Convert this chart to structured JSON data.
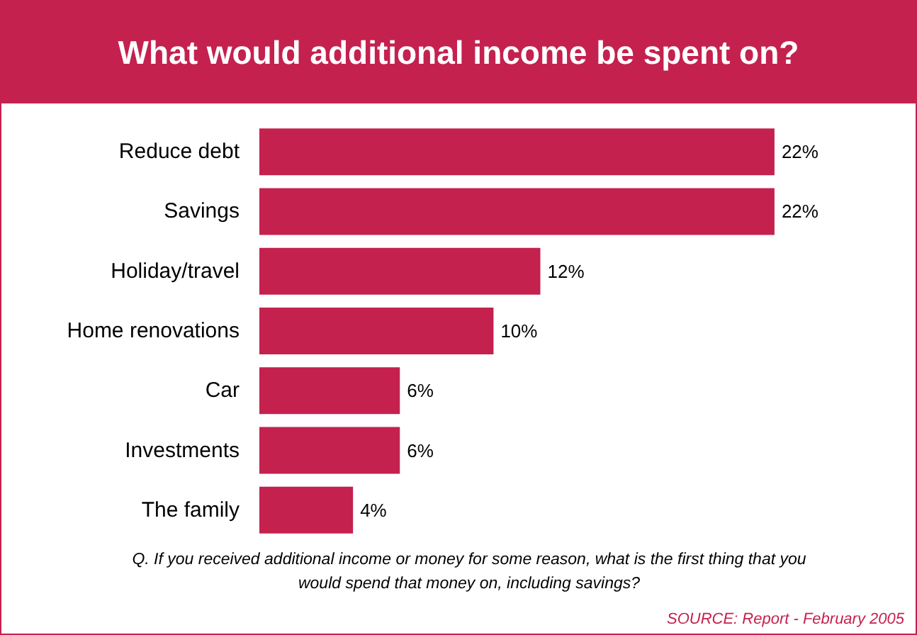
{
  "chart_data": {
    "type": "bar",
    "orientation": "horizontal",
    "title": "What would additional income be spent on?",
    "categories": [
      "Reduce debt",
      "Savings",
      "Holiday/travel",
      "Home renovations",
      "Car",
      "Investments",
      "The family"
    ],
    "values": [
      22,
      22,
      12,
      10,
      6,
      6,
      4
    ],
    "color": "#c4214f",
    "value_labels": [
      "22%",
      "22%",
      "12%",
      "10%",
      "6%",
      "6%",
      "4%"
    ],
    "annotations": [
      "Q. If you received additional income or money for some reason, what is the first thing that you would spend that money on, including savings?",
      "SOURCE: Report - February 2005"
    ]
  }
}
